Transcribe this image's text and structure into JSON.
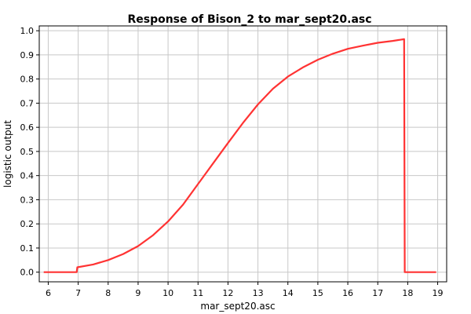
{
  "chart_data": {
    "type": "line",
    "title": "Response of Bison_2 to mar_sept20.asc",
    "xlabel": "mar_sept20.asc",
    "ylabel": "logistic output",
    "xlim": [
      5.7,
      19.3
    ],
    "ylim": [
      -0.04,
      1.02
    ],
    "xticks": [
      6,
      7,
      8,
      9,
      10,
      11,
      12,
      13,
      14,
      15,
      16,
      17,
      18,
      19
    ],
    "yticks": [
      0.0,
      0.1,
      0.2,
      0.3,
      0.4,
      0.5,
      0.6,
      0.7,
      0.8,
      0.9,
      1.0
    ],
    "ytick_labels": [
      "0.0",
      "0.1",
      "0.2",
      "0.3",
      "0.4",
      "0.5",
      "0.6",
      "0.7",
      "0.8",
      "0.9",
      "1.0"
    ],
    "grid": true,
    "series": [
      {
        "color": "#ff3333",
        "x": [
          5.85,
          6.95,
          6.97,
          7.5,
          8.0,
          8.5,
          9.0,
          9.5,
          10.0,
          10.5,
          11.0,
          11.5,
          12.0,
          12.5,
          13.0,
          13.5,
          14.0,
          14.5,
          15.0,
          15.5,
          16.0,
          16.5,
          17.0,
          17.5,
          17.88,
          17.9,
          18.95
        ],
        "y": [
          0.0,
          0.0,
          0.02,
          0.032,
          0.05,
          0.075,
          0.108,
          0.153,
          0.21,
          0.28,
          0.365,
          0.45,
          0.535,
          0.618,
          0.695,
          0.76,
          0.81,
          0.848,
          0.88,
          0.905,
          0.925,
          0.938,
          0.95,
          0.958,
          0.965,
          0.0,
          0.0
        ]
      }
    ]
  }
}
